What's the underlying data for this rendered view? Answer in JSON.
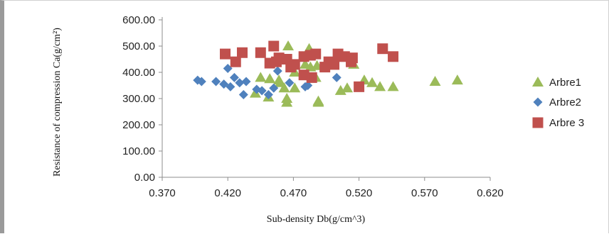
{
  "chart_data": {
    "type": "scatter",
    "xlabel": "Sub-density Db(g/cm^3)",
    "ylabel": "Resistance of compression Ca(g/cm²)",
    "xlim": [
      0.37,
      0.62
    ],
    "ylim": [
      0,
      600
    ],
    "x_ticks": [
      "0.370",
      "0.420",
      "0.470",
      "0.520",
      "0.570",
      "0.620"
    ],
    "y_ticks": [
      "0.00",
      "100.00",
      "200.00",
      "300.00",
      "400.00",
      "500.00",
      "600.00"
    ],
    "grid": false,
    "legend_position": "right",
    "series": [
      {
        "name": "Arbre1",
        "marker": "triangle",
        "color": "#9bbb59",
        "points": [
          [
            0.466,
            500
          ],
          [
            0.482,
            490
          ],
          [
            0.479,
            430
          ],
          [
            0.488,
            425
          ],
          [
            0.483,
            420
          ],
          [
            0.471,
            400
          ],
          [
            0.445,
            380
          ],
          [
            0.452,
            375
          ],
          [
            0.459,
            370
          ],
          [
            0.487,
            380
          ],
          [
            0.516,
            430
          ],
          [
            0.524,
            370
          ],
          [
            0.53,
            360
          ],
          [
            0.536,
            345
          ],
          [
            0.546,
            345
          ],
          [
            0.511,
            340
          ],
          [
            0.506,
            330
          ],
          [
            0.471,
            340
          ],
          [
            0.463,
            340
          ],
          [
            0.441,
            320
          ],
          [
            0.451,
            305
          ],
          [
            0.465,
            300
          ],
          [
            0.465,
            285
          ],
          [
            0.489,
            290
          ],
          [
            0.489,
            285
          ],
          [
            0.578,
            365
          ],
          [
            0.595,
            370
          ],
          [
            0.46,
            360
          ]
        ]
      },
      {
        "name": "Arbre2",
        "marker": "diamond",
        "color": "#4f81bd",
        "points": [
          [
            0.397,
            370
          ],
          [
            0.4,
            365
          ],
          [
            0.411,
            365
          ],
          [
            0.417,
            355
          ],
          [
            0.422,
            345
          ],
          [
            0.425,
            380
          ],
          [
            0.42,
            415
          ],
          [
            0.429,
            360
          ],
          [
            0.434,
            365
          ],
          [
            0.432,
            315
          ],
          [
            0.446,
            330
          ],
          [
            0.451,
            315
          ],
          [
            0.458,
            405
          ],
          [
            0.467,
            360
          ],
          [
            0.481,
            350
          ],
          [
            0.479,
            345
          ],
          [
            0.503,
            380
          ],
          [
            0.442,
            335
          ],
          [
            0.455,
            340
          ]
        ]
      },
      {
        "name": "Arbre 3",
        "marker": "square",
        "color": "#c0504d",
        "points": [
          [
            0.418,
            470
          ],
          [
            0.426,
            440
          ],
          [
            0.431,
            475
          ],
          [
            0.445,
            475
          ],
          [
            0.455,
            500
          ],
          [
            0.452,
            435
          ],
          [
            0.457,
            440
          ],
          [
            0.459,
            455
          ],
          [
            0.465,
            450
          ],
          [
            0.468,
            420
          ],
          [
            0.471,
            430
          ],
          [
            0.478,
            460
          ],
          [
            0.483,
            465
          ],
          [
            0.487,
            470
          ],
          [
            0.484,
            380
          ],
          [
            0.478,
            390
          ],
          [
            0.494,
            420
          ],
          [
            0.497,
            440
          ],
          [
            0.501,
            430
          ],
          [
            0.504,
            470
          ],
          [
            0.509,
            460
          ],
          [
            0.515,
            455
          ],
          [
            0.514,
            440
          ],
          [
            0.52,
            345
          ],
          [
            0.538,
            490
          ],
          [
            0.546,
            460
          ]
        ]
      }
    ]
  }
}
